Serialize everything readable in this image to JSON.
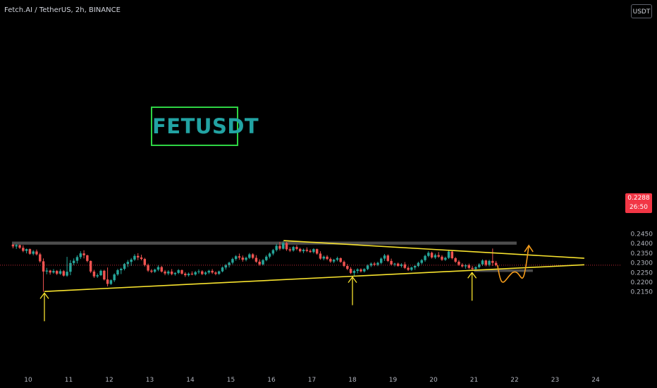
{
  "header": {
    "ticker": "Fetch.AI / TetherUS, 2h, BINANCE"
  },
  "currency_button": "USDT",
  "annotation_label": "FETUSDT",
  "current_price": {
    "price": "0.2288",
    "countdown": "26:50"
  },
  "colors": {
    "background": "#000000",
    "up": "#26a69a",
    "down": "#ef5350",
    "trendline": "#f7e22e",
    "arrow": "#f7e22e",
    "projection": "#f59c1a",
    "zone": "#5a5a5a",
    "label_text": "#22a3a3",
    "label_border": "#2ed444",
    "price_tag": "#f23645",
    "axis_text": "#b2b5be"
  },
  "chart_data": {
    "type": "candlestick",
    "symbol": "FETUSDT",
    "interval": "2h",
    "exchange": "BINANCE",
    "xlim": [
      9.6,
      24.5
    ],
    "ylim": [
      0.2112,
      0.2497
    ],
    "x_ticks": [
      10,
      11,
      12,
      13,
      14,
      15,
      16,
      17,
      18,
      19,
      20,
      21,
      22,
      23,
      24
    ],
    "y_ticks": [
      "0.2150",
      "0.2200",
      "0.2250",
      "0.2300",
      "0.2350",
      "0.2400",
      "0.2450"
    ],
    "current_price": 0.2288,
    "candles": [
      [
        9.625,
        0.2394,
        0.2398,
        0.2375,
        0.2385
      ],
      [
        9.708,
        0.2385,
        0.2397,
        0.2372,
        0.2392
      ],
      [
        9.792,
        0.2392,
        0.2394,
        0.2372,
        0.2378
      ],
      [
        9.875,
        0.2378,
        0.2391,
        0.2355,
        0.2362
      ],
      [
        9.958,
        0.2362,
        0.2374,
        0.2349,
        0.2371
      ],
      [
        10.042,
        0.2371,
        0.2374,
        0.2342,
        0.2347
      ],
      [
        10.125,
        0.2347,
        0.2366,
        0.2339,
        0.2359
      ],
      [
        10.208,
        0.2359,
        0.2369,
        0.2338,
        0.2344
      ],
      [
        10.292,
        0.2344,
        0.2352,
        0.2301,
        0.2308
      ],
      [
        10.375,
        0.2308,
        0.2323,
        0.215,
        0.2255
      ],
      [
        10.458,
        0.2255,
        0.2274,
        0.2241,
        0.226
      ],
      [
        10.542,
        0.226,
        0.2264,
        0.2239,
        0.225
      ],
      [
        10.625,
        0.225,
        0.2268,
        0.2244,
        0.2258
      ],
      [
        10.708,
        0.2258,
        0.2263,
        0.2237,
        0.2244
      ],
      [
        10.792,
        0.2244,
        0.2267,
        0.2238,
        0.2257
      ],
      [
        10.875,
        0.2257,
        0.2263,
        0.2229,
        0.2234
      ],
      [
        10.958,
        0.2234,
        0.2331,
        0.2228,
        0.2254
      ],
      [
        11.042,
        0.2254,
        0.2314,
        0.2236,
        0.2299
      ],
      [
        11.125,
        0.2299,
        0.2323,
        0.2287,
        0.2311
      ],
      [
        11.208,
        0.2311,
        0.2339,
        0.2297,
        0.233
      ],
      [
        11.292,
        0.233,
        0.236,
        0.232,
        0.2349
      ],
      [
        11.375,
        0.2349,
        0.2365,
        0.2323,
        0.2339
      ],
      [
        11.458,
        0.2339,
        0.2342,
        0.2303,
        0.231
      ],
      [
        11.542,
        0.231,
        0.2312,
        0.2247,
        0.2255
      ],
      [
        11.625,
        0.2255,
        0.2264,
        0.2222,
        0.223
      ],
      [
        11.708,
        0.223,
        0.2245,
        0.2222,
        0.2236
      ],
      [
        11.792,
        0.2236,
        0.2265,
        0.2232,
        0.2259
      ],
      [
        11.875,
        0.2259,
        0.2264,
        0.2209,
        0.2214
      ],
      [
        11.958,
        0.2214,
        0.2276,
        0.2178,
        0.2191
      ],
      [
        12.042,
        0.2191,
        0.2215,
        0.2186,
        0.221
      ],
      [
        12.125,
        0.221,
        0.2246,
        0.2201,
        0.224
      ],
      [
        12.208,
        0.224,
        0.2269,
        0.2233,
        0.2262
      ],
      [
        12.292,
        0.2262,
        0.2275,
        0.2242,
        0.2269
      ],
      [
        12.375,
        0.2269,
        0.2299,
        0.2261,
        0.2294
      ],
      [
        12.458,
        0.2294,
        0.2315,
        0.2278,
        0.2305
      ],
      [
        12.542,
        0.2305,
        0.2325,
        0.2284,
        0.2317
      ],
      [
        12.625,
        0.2317,
        0.2345,
        0.231,
        0.2336
      ],
      [
        12.708,
        0.2336,
        0.235,
        0.2314,
        0.2328
      ],
      [
        12.792,
        0.2328,
        0.2342,
        0.2313,
        0.232
      ],
      [
        12.875,
        0.232,
        0.2326,
        0.2281,
        0.2289
      ],
      [
        12.958,
        0.2289,
        0.2296,
        0.2253,
        0.226
      ],
      [
        13.042,
        0.226,
        0.2268,
        0.2247,
        0.2254
      ],
      [
        13.125,
        0.2254,
        0.227,
        0.2248,
        0.2265
      ],
      [
        13.208,
        0.2265,
        0.2287,
        0.2257,
        0.2278
      ],
      [
        13.292,
        0.2278,
        0.2284,
        0.225,
        0.2255
      ],
      [
        13.375,
        0.2255,
        0.2263,
        0.2236,
        0.2245
      ],
      [
        13.458,
        0.2245,
        0.2262,
        0.2236,
        0.2255
      ],
      [
        13.542,
        0.2255,
        0.2268,
        0.2236,
        0.2242
      ],
      [
        13.625,
        0.2242,
        0.2252,
        0.2234,
        0.2248
      ],
      [
        13.708,
        0.2248,
        0.2268,
        0.2242,
        0.2262
      ],
      [
        13.792,
        0.2262,
        0.2266,
        0.2239,
        0.2244
      ],
      [
        13.875,
        0.2244,
        0.2252,
        0.2227,
        0.2236
      ],
      [
        13.958,
        0.2236,
        0.225,
        0.2229,
        0.2244
      ],
      [
        14.042,
        0.2244,
        0.2256,
        0.2236,
        0.224
      ],
      [
        14.125,
        0.224,
        0.2258,
        0.2234,
        0.2252
      ],
      [
        14.208,
        0.2252,
        0.2266,
        0.2243,
        0.2256
      ],
      [
        14.292,
        0.2256,
        0.2262,
        0.2237,
        0.2242
      ],
      [
        14.375,
        0.2242,
        0.2256,
        0.2236,
        0.225
      ],
      [
        14.458,
        0.225,
        0.2264,
        0.2242,
        0.2259
      ],
      [
        14.542,
        0.2259,
        0.2268,
        0.2243,
        0.225
      ],
      [
        14.625,
        0.225,
        0.2256,
        0.2236,
        0.2243
      ],
      [
        14.708,
        0.2243,
        0.226,
        0.2238,
        0.2256
      ],
      [
        14.792,
        0.2256,
        0.2281,
        0.2251,
        0.2276
      ],
      [
        14.875,
        0.2276,
        0.2294,
        0.2265,
        0.2288
      ],
      [
        14.958,
        0.2288,
        0.2306,
        0.2276,
        0.2301
      ],
      [
        15.042,
        0.2301,
        0.2327,
        0.2292,
        0.232
      ],
      [
        15.125,
        0.232,
        0.234,
        0.2311,
        0.2334
      ],
      [
        15.208,
        0.2334,
        0.2348,
        0.2316,
        0.2327
      ],
      [
        15.292,
        0.2327,
        0.2338,
        0.2306,
        0.2316
      ],
      [
        15.375,
        0.2316,
        0.2332,
        0.2308,
        0.2326
      ],
      [
        15.458,
        0.2326,
        0.2351,
        0.232,
        0.2344
      ],
      [
        15.542,
        0.2344,
        0.235,
        0.2319,
        0.2326
      ],
      [
        15.625,
        0.2326,
        0.234,
        0.23,
        0.2306
      ],
      [
        15.708,
        0.2306,
        0.2318,
        0.2285,
        0.2292
      ],
      [
        15.792,
        0.2292,
        0.232,
        0.2286,
        0.2314
      ],
      [
        15.875,
        0.2314,
        0.234,
        0.2308,
        0.2332
      ],
      [
        15.958,
        0.2332,
        0.2354,
        0.2323,
        0.2348
      ],
      [
        16.042,
        0.2348,
        0.2372,
        0.2339,
        0.2366
      ],
      [
        16.125,
        0.2366,
        0.2398,
        0.2358,
        0.2388
      ],
      [
        16.208,
        0.2388,
        0.2408,
        0.2364,
        0.2373
      ],
      [
        16.292,
        0.2373,
        0.2412,
        0.2369,
        0.2402
      ],
      [
        16.375,
        0.2402,
        0.2408,
        0.2362,
        0.237
      ],
      [
        16.458,
        0.237,
        0.2381,
        0.2356,
        0.2364
      ],
      [
        16.542,
        0.2364,
        0.2388,
        0.2358,
        0.2382
      ],
      [
        16.625,
        0.2382,
        0.2392,
        0.2365,
        0.2372
      ],
      [
        16.708,
        0.2372,
        0.2378,
        0.2354,
        0.236
      ],
      [
        16.792,
        0.236,
        0.2374,
        0.235,
        0.2368
      ],
      [
        16.875,
        0.2368,
        0.238,
        0.2355,
        0.2362
      ],
      [
        16.958,
        0.2362,
        0.237,
        0.2352,
        0.2356
      ],
      [
        17.042,
        0.2356,
        0.2376,
        0.2349,
        0.2371
      ],
      [
        17.125,
        0.2371,
        0.2374,
        0.2342,
        0.2348
      ],
      [
        17.208,
        0.2348,
        0.236,
        0.2316,
        0.2322
      ],
      [
        17.292,
        0.2322,
        0.2338,
        0.2313,
        0.2332
      ],
      [
        17.375,
        0.2332,
        0.234,
        0.2314,
        0.232
      ],
      [
        17.458,
        0.232,
        0.2328,
        0.23,
        0.2307
      ],
      [
        17.542,
        0.2307,
        0.2321,
        0.2299,
        0.2316
      ],
      [
        17.625,
        0.2316,
        0.2332,
        0.2308,
        0.2324
      ],
      [
        17.708,
        0.2324,
        0.2328,
        0.23,
        0.2305
      ],
      [
        17.792,
        0.2305,
        0.2312,
        0.2278,
        0.2284
      ],
      [
        17.875,
        0.2284,
        0.2294,
        0.2262,
        0.2269
      ],
      [
        17.958,
        0.2269,
        0.2278,
        0.2242,
        0.2248
      ],
      [
        18.042,
        0.2248,
        0.2266,
        0.2232,
        0.2258
      ],
      [
        18.125,
        0.2258,
        0.2272,
        0.2246,
        0.2266
      ],
      [
        18.208,
        0.2266,
        0.2272,
        0.225,
        0.2256
      ],
      [
        18.292,
        0.2256,
        0.2272,
        0.225,
        0.2268
      ],
      [
        18.375,
        0.2268,
        0.2292,
        0.2262,
        0.2286
      ],
      [
        18.458,
        0.2286,
        0.2302,
        0.2278,
        0.2296
      ],
      [
        18.542,
        0.2296,
        0.2304,
        0.2283,
        0.229
      ],
      [
        18.625,
        0.229,
        0.2306,
        0.2283,
        0.23
      ],
      [
        18.708,
        0.23,
        0.2328,
        0.2293,
        0.2322
      ],
      [
        18.792,
        0.2322,
        0.2346,
        0.231,
        0.2338
      ],
      [
        18.875,
        0.2338,
        0.2344,
        0.2304,
        0.231
      ],
      [
        18.958,
        0.231,
        0.2322,
        0.2286,
        0.2292
      ],
      [
        19.042,
        0.2292,
        0.23,
        0.2282,
        0.2296
      ],
      [
        19.125,
        0.2296,
        0.2301,
        0.228,
        0.2284
      ],
      [
        19.208,
        0.2284,
        0.2298,
        0.2276,
        0.2292
      ],
      [
        19.292,
        0.2292,
        0.2304,
        0.2268,
        0.2274
      ],
      [
        19.375,
        0.2274,
        0.2282,
        0.2258,
        0.2264
      ],
      [
        19.458,
        0.2264,
        0.228,
        0.2258,
        0.2276
      ],
      [
        19.542,
        0.2276,
        0.229,
        0.2264,
        0.2284
      ],
      [
        19.625,
        0.2284,
        0.2306,
        0.2278,
        0.23
      ],
      [
        19.708,
        0.23,
        0.232,
        0.2292,
        0.2314
      ],
      [
        19.792,
        0.2314,
        0.2342,
        0.2306,
        0.2336
      ],
      [
        19.875,
        0.2336,
        0.236,
        0.2329,
        0.2352
      ],
      [
        19.958,
        0.2352,
        0.2358,
        0.2322,
        0.2328
      ],
      [
        20.042,
        0.2328,
        0.2348,
        0.232,
        0.234
      ],
      [
        20.125,
        0.234,
        0.2356,
        0.2326,
        0.2332
      ],
      [
        20.208,
        0.2332,
        0.234,
        0.231,
        0.2316
      ],
      [
        20.292,
        0.2316,
        0.2332,
        0.231,
        0.2326
      ],
      [
        20.375,
        0.2326,
        0.2364,
        0.232,
        0.2358
      ],
      [
        20.458,
        0.2358,
        0.2364,
        0.2318,
        0.2324
      ],
      [
        20.542,
        0.2324,
        0.233,
        0.23,
        0.2306
      ],
      [
        20.625,
        0.2306,
        0.2314,
        0.2284,
        0.229
      ],
      [
        20.708,
        0.229,
        0.2298,
        0.2276,
        0.2282
      ],
      [
        20.792,
        0.2282,
        0.2294,
        0.227,
        0.2288
      ],
      [
        20.875,
        0.2288,
        0.2296,
        0.2268,
        0.2274
      ],
      [
        20.958,
        0.2274,
        0.2284,
        0.2262,
        0.2268
      ],
      [
        21.042,
        0.2268,
        0.2282,
        0.2262,
        0.2278
      ],
      [
        21.125,
        0.2278,
        0.2298,
        0.2271,
        0.2292
      ],
      [
        21.208,
        0.2292,
        0.2318,
        0.2284,
        0.2312
      ],
      [
        21.292,
        0.2312,
        0.2316,
        0.2282,
        0.229
      ],
      [
        21.375,
        0.229,
        0.2316,
        0.2282,
        0.231
      ],
      [
        21.458,
        0.231,
        0.2374,
        0.2284,
        0.23
      ],
      [
        21.542,
        0.23,
        0.231,
        0.2282,
        0.2288
      ]
    ],
    "annotations": {
      "resistance_zone": [
        9.6,
        22.05,
        0.2394,
        0.241
      ],
      "support_zone": [
        21.0,
        22.45,
        0.2253,
        0.2266
      ],
      "descending_trendline": [
        [
          16.3,
          0.2415
        ],
        [
          23.72,
          0.2324
        ]
      ],
      "ascending_trendline": [
        [
          10.4,
          0.2152
        ],
        [
          23.72,
          0.229
        ]
      ],
      "upward_arrows": [
        [
          10.4,
          0.2144
        ],
        [
          18.0,
          0.2227
        ],
        [
          20.95,
          0.225
        ]
      ],
      "projected_path": [
        [
          21.58,
          0.2288
        ],
        [
          21.95,
          0.225
        ],
        [
          22.35,
          0.239
        ]
      ]
    }
  }
}
